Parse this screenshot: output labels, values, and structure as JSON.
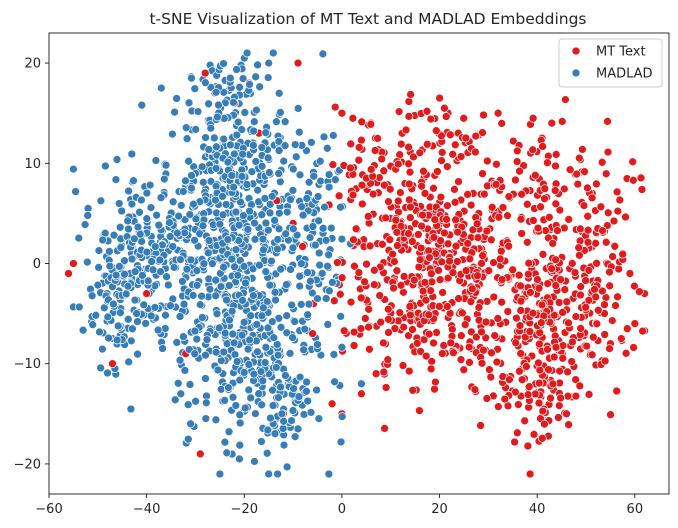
{
  "chart_data": {
    "type": "scatter",
    "title": "t-SNE Visualization of MT Text and MADLAD Embeddings",
    "xlabel": "",
    "ylabel": "",
    "xlim": [
      -60,
      67
    ],
    "ylim": [
      -23,
      23
    ],
    "xticks": [
      -60,
      -40,
      -20,
      0,
      20,
      40,
      60
    ],
    "yticks": [
      -20,
      -10,
      0,
      10,
      20
    ],
    "grid": false,
    "legend_position": "top-right",
    "series": [
      {
        "name": "MT Text",
        "color": "#e31a1c",
        "clusters": [
          {
            "cx": 18,
            "cy": 0.5,
            "sx": 9,
            "sy": 5,
            "n": 420
          },
          {
            "cx": 42,
            "cy": -6,
            "sx": 6,
            "sy": 4,
            "n": 240
          },
          {
            "cx": 40,
            "cy": 7,
            "sx": 9,
            "sy": 4,
            "n": 120
          },
          {
            "cx": 20,
            "cy": -8,
            "sx": 9,
            "sy": 3,
            "n": 80
          },
          {
            "cx": 53,
            "cy": -2,
            "sx": 4,
            "sy": 5,
            "n": 80
          },
          {
            "cx": 40,
            "cy": -14,
            "sx": 3,
            "sy": 2,
            "n": 45
          },
          {
            "cx": 5,
            "cy": 10,
            "sx": 4,
            "sy": 2.5,
            "n": 45
          },
          {
            "cx": 22,
            "cy": 12,
            "sx": 6,
            "sy": 2,
            "n": 40
          }
        ],
        "points": [
          [
            -55,
            0
          ],
          [
            -56,
            -1
          ],
          [
            -47,
            -10
          ],
          [
            -40,
            -3
          ],
          [
            -29,
            -19
          ],
          [
            -26,
            17
          ],
          [
            -19,
            18
          ],
          [
            -9,
            20
          ],
          [
            -17,
            13
          ],
          [
            -12,
            -15
          ],
          [
            -6,
            -7
          ],
          [
            -22,
            16
          ],
          [
            -32,
            -9
          ],
          [
            -28,
            19
          ],
          [
            -10,
            4
          ],
          [
            20,
            16.5
          ],
          [
            21,
            15.5
          ],
          [
            41,
            12.5
          ],
          [
            0,
            -15
          ],
          [
            4,
            -13
          ],
          [
            7,
            -11
          ],
          [
            -2,
            -14
          ],
          [
            0,
            15
          ],
          [
            32,
            15
          ],
          [
            43,
            14
          ],
          [
            59,
            -1
          ],
          [
            62,
            -3
          ],
          [
            60,
            -6
          ],
          [
            55,
            -8
          ],
          [
            46,
            -15
          ]
        ]
      },
      {
        "name": "MADLAD",
        "color": "#377eb8",
        "clusters": [
          {
            "cx": -22,
            "cy": 4,
            "sx": 8,
            "sy": 5,
            "n": 420
          },
          {
            "cx": -20,
            "cy": -7,
            "sx": 7,
            "sy": 5,
            "n": 300
          },
          {
            "cx": -40,
            "cy": 1,
            "sx": 6,
            "sy": 4,
            "n": 200
          },
          {
            "cx": -22,
            "cy": 14,
            "sx": 5,
            "sy": 3.5,
            "n": 120
          },
          {
            "cx": -14,
            "cy": -14,
            "sx": 5,
            "sy": 3,
            "n": 80
          },
          {
            "cx": -47,
            "cy": -4,
            "sx": 3,
            "sy": 3,
            "n": 70
          },
          {
            "cx": -5,
            "cy": 3,
            "sx": 3,
            "sy": 5,
            "n": 60
          }
        ],
        "points": [
          [
            -25,
            -21
          ],
          [
            -21,
            -19.5
          ],
          [
            -20,
            20.5
          ],
          [
            -27,
            19.8
          ],
          [
            -15,
            20
          ],
          [
            -52,
            5.5
          ],
          [
            -41,
            15.8
          ],
          [
            -37,
            17.5
          ],
          [
            -3,
            11.5
          ],
          [
            -2,
            2.5
          ],
          [
            -5,
            -3.5
          ],
          [
            -5,
            -8.5
          ],
          [
            -8,
            -12.5
          ],
          [
            4,
            -12
          ],
          [
            -31,
            -16
          ],
          [
            -33,
            -13
          ],
          [
            -9,
            -16.5
          ]
        ]
      }
    ]
  }
}
